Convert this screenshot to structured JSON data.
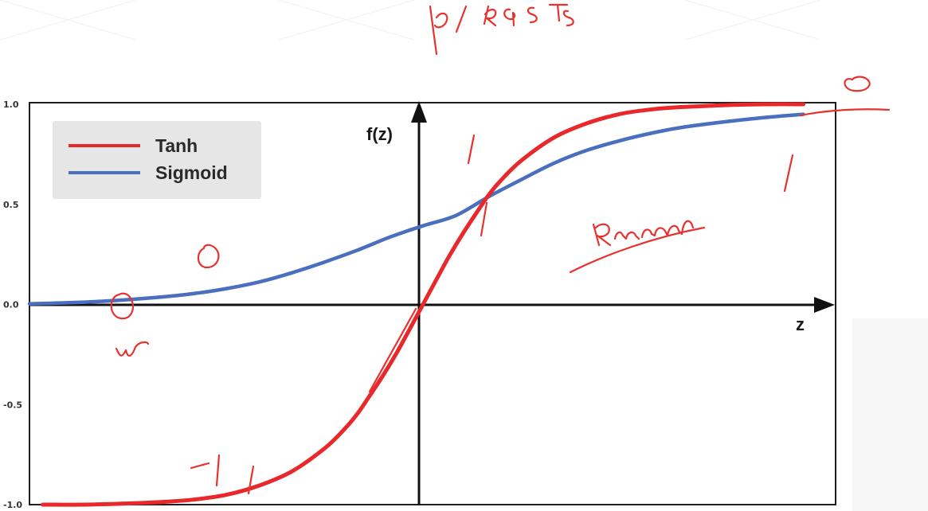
{
  "chart_data": {
    "type": "line",
    "xlabel": "z",
    "ylabel": "f(z)",
    "xlim": [
      -6,
      6
    ],
    "ylim": [
      -1,
      1
    ],
    "yticks": [
      "1.0",
      "0.5",
      "0.0",
      "-0.5",
      "-1.0"
    ],
    "grid": false,
    "legend_position": "top-left",
    "series": [
      {
        "name": "Tanh",
        "color": "#e8282b",
        "x": [
          -5.8,
          -5,
          -4,
          -3.5,
          -3,
          -2.5,
          -2,
          -1.5,
          -1.2,
          -1,
          -0.8,
          -0.6,
          -0.4,
          -0.2,
          0,
          0.2,
          0.4,
          0.6,
          0.8,
          1,
          1.2,
          1.5,
          2,
          2.5,
          3,
          3.5,
          4,
          5,
          5.8
        ],
        "y": [
          -1.0,
          -0.999,
          -0.987,
          -0.975,
          -0.951,
          -0.905,
          -0.834,
          -0.719,
          -0.624,
          -0.546,
          -0.45,
          -0.35,
          -0.241,
          -0.122,
          0.0,
          0.122,
          0.241,
          0.35,
          0.45,
          0.546,
          0.624,
          0.719,
          0.834,
          0.905,
          0.951,
          0.975,
          0.987,
          0.999,
          1.0
        ]
      },
      {
        "name": "Sigmoid",
        "color": "#4a6fbe",
        "x": [
          -6,
          -5,
          -4,
          -3.5,
          -3,
          -2.5,
          -2,
          -1.5,
          -1,
          -0.5,
          0,
          0.5,
          1,
          1.5,
          2,
          2.5,
          3,
          3.5,
          4,
          5,
          5.8
        ],
        "y": [
          0.003,
          0.014,
          0.037,
          0.054,
          0.079,
          0.112,
          0.158,
          0.212,
          0.271,
          0.337,
          0.393,
          0.444,
          0.538,
          0.624,
          0.706,
          0.77,
          0.818,
          0.857,
          0.887,
          0.927,
          0.95
        ]
      }
    ]
  },
  "annotations": {
    "top": "P/ RGTS"
  }
}
